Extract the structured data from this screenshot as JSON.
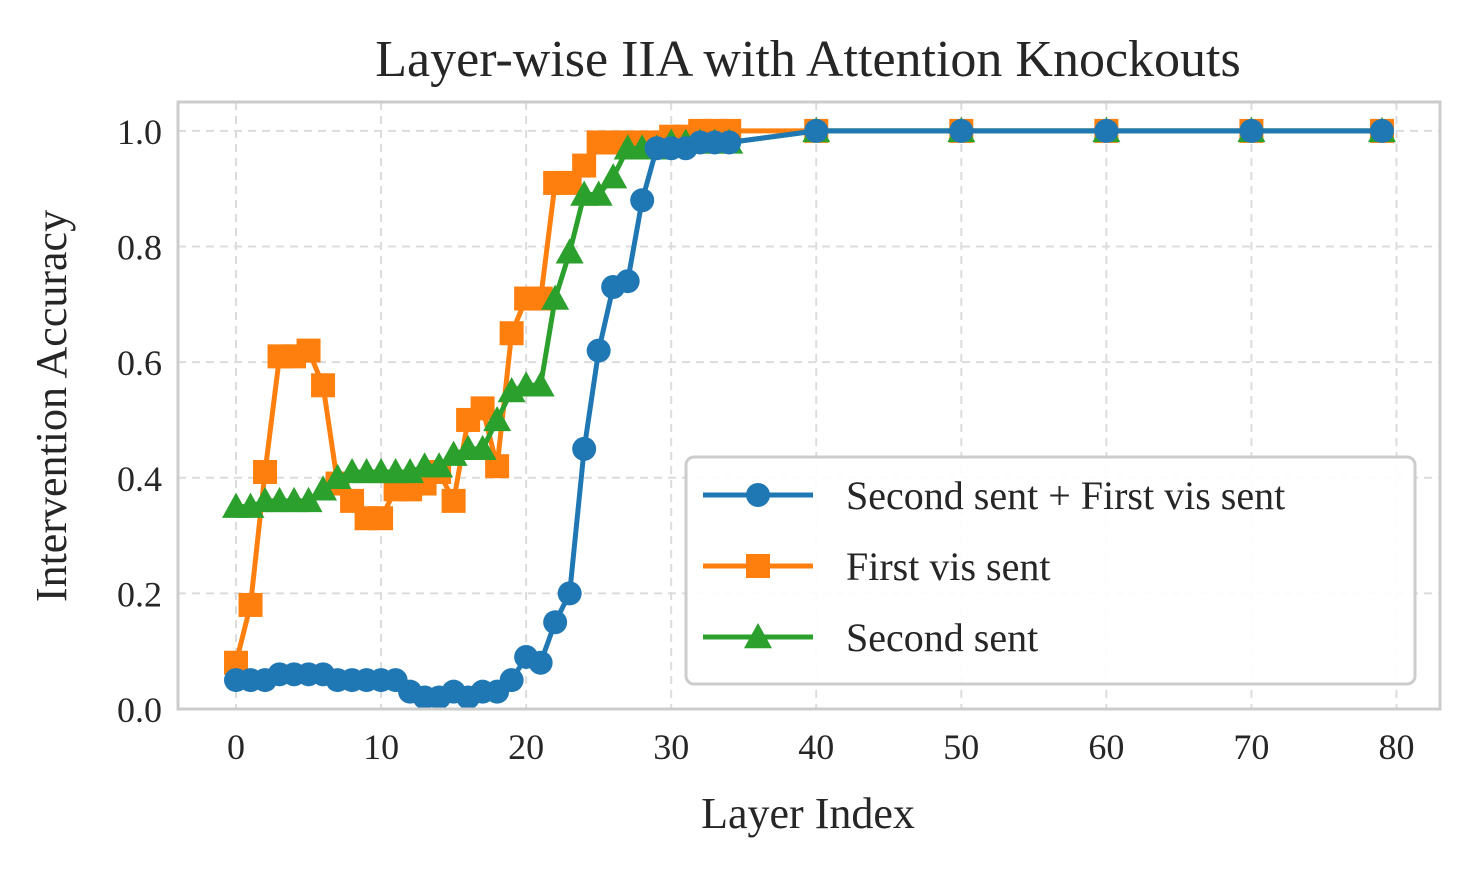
{
  "chart_data": {
    "type": "line",
    "title": "Layer-wise IIA with Attention Knockouts",
    "xlabel": "Layer Index",
    "ylabel": "Intervention Accuracy",
    "xlim": [
      -4,
      83
    ],
    "ylim": [
      0,
      1.05
    ],
    "xticks": [
      0,
      10,
      20,
      30,
      40,
      50,
      60,
      70,
      80
    ],
    "yticks": [
      0.0,
      0.2,
      0.4,
      0.6,
      0.8,
      1.0
    ],
    "ytick_labels": [
      "0.0",
      "0.2",
      "0.4",
      "0.6",
      "0.8",
      "1.0"
    ],
    "grid": true,
    "legend_position": "lower-right",
    "x": [
      0,
      1,
      2,
      3,
      4,
      5,
      6,
      7,
      8,
      9,
      10,
      11,
      12,
      13,
      14,
      15,
      16,
      17,
      18,
      19,
      20,
      21,
      22,
      23,
      24,
      25,
      26,
      27,
      28,
      29,
      30,
      31,
      32,
      33,
      34,
      40,
      50,
      60,
      70,
      79
    ],
    "series": [
      {
        "name": "Second sent + First vis sent",
        "color": "#1f77b4",
        "marker": "circle",
        "values": [
          0.05,
          0.05,
          0.05,
          0.06,
          0.06,
          0.06,
          0.06,
          0.05,
          0.05,
          0.05,
          0.05,
          0.05,
          0.03,
          0.02,
          0.02,
          0.03,
          0.02,
          0.03,
          0.03,
          0.05,
          0.09,
          0.08,
          0.15,
          0.2,
          0.45,
          0.62,
          0.73,
          0.74,
          0.88,
          0.97,
          0.97,
          0.97,
          0.98,
          0.98,
          0.98,
          1.0,
          1.0,
          1.0,
          1.0,
          1.0
        ]
      },
      {
        "name": "First vis sent",
        "color": "#ff7f0e",
        "marker": "square",
        "values": [
          0.08,
          0.18,
          0.41,
          0.61,
          0.61,
          0.62,
          0.56,
          0.39,
          0.36,
          0.33,
          0.33,
          0.38,
          0.38,
          0.39,
          0.41,
          0.36,
          0.5,
          0.52,
          0.42,
          0.65,
          0.71,
          0.71,
          0.91,
          0.91,
          0.94,
          0.98,
          0.98,
          0.98,
          0.98,
          0.98,
          0.99,
          0.99,
          1.0,
          1.0,
          1.0,
          1.0,
          1.0,
          1.0,
          1.0,
          1.0
        ]
      },
      {
        "name": "Second sent",
        "color": "#2ca02c",
        "marker": "triangle",
        "values": [
          0.35,
          0.35,
          0.36,
          0.36,
          0.36,
          0.36,
          0.38,
          0.4,
          0.41,
          0.41,
          0.41,
          0.41,
          0.41,
          0.42,
          0.42,
          0.44,
          0.45,
          0.45,
          0.5,
          0.55,
          0.56,
          0.56,
          0.71,
          0.79,
          0.89,
          0.89,
          0.92,
          0.97,
          0.97,
          0.97,
          0.98,
          0.98,
          0.98,
          0.98,
          0.98,
          1.0,
          1.0,
          1.0,
          1.0,
          1.0
        ]
      }
    ]
  }
}
